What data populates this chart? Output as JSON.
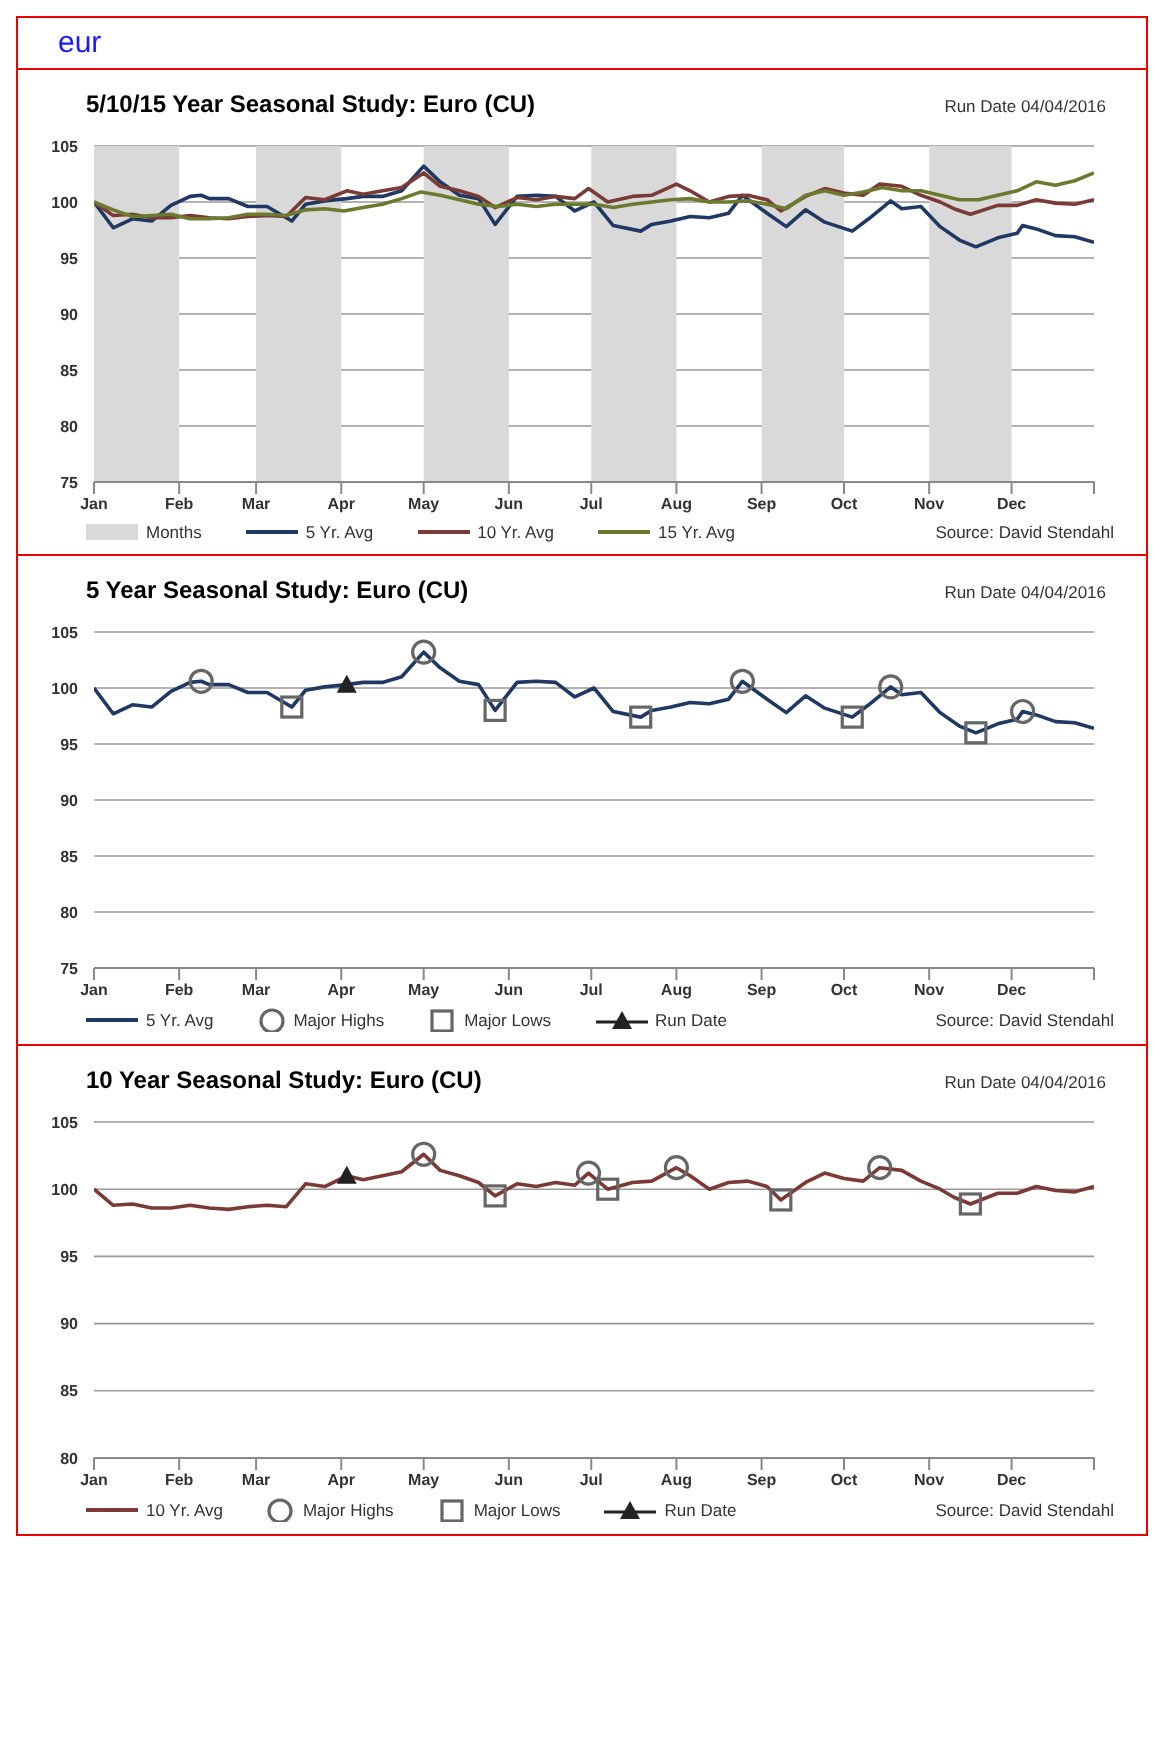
{
  "chart_data": [
    {
      "type": "line",
      "title": "5/10/15 Year Seasonal Study: Euro (CU)",
      "annotations": [
        "eur",
        "Run Date 04/04/2016",
        "Source: David Stendahl"
      ],
      "xlim": [
        "--01-01",
        "--12-31"
      ],
      "xticks": [
        {
          "value": "--01-01",
          "label": "Jan"
        },
        {
          "value": "--02-01",
          "label": "Feb"
        },
        {
          "value": "--03-01",
          "label": "Mar"
        },
        {
          "value": "--04-01",
          "label": "Apr"
        },
        {
          "value": "--05-01",
          "label": "May"
        },
        {
          "value": "--06-01",
          "label": "Jun"
        },
        {
          "value": "--07-01",
          "label": "Jul"
        },
        {
          "value": "--08-01",
          "label": "Aug"
        },
        {
          "value": "--09-01",
          "label": "Sep"
        },
        {
          "value": "--10-01",
          "label": "Oct"
        },
        {
          "value": "--11-01",
          "label": "Nov"
        },
        {
          "value": "--12-01",
          "label": "Dec"
        },
        {
          "value": "--12-31",
          "label": null
        }
      ],
      "ylim": [
        75,
        105
      ],
      "yticks": [
        75,
        80,
        85,
        90,
        95,
        100,
        105
      ],
      "grid": "y",
      "legend": "bottom",
      "bands": [
        {
          "axis": "x",
          "from": "--01-01",
          "to": "--02-01",
          "label": "Months",
          "color": "#d9d9d9"
        },
        {
          "axis": "x",
          "from": "--03-01",
          "to": "--04-01",
          "color": "#d9d9d9"
        },
        {
          "axis": "x",
          "from": "--05-01",
          "to": "--06-01",
          "color": "#d9d9d9"
        },
        {
          "axis": "x",
          "from": "--07-01",
          "to": "--08-01",
          "color": "#d9d9d9"
        },
        {
          "axis": "x",
          "from": "--09-01",
          "to": "--10-01",
          "color": "#d9d9d9"
        },
        {
          "axis": "x",
          "from": "--11-01",
          "to": "--12-01",
          "color": "#d9d9d9"
        }
      ],
      "series": [
        {
          "name": "5 Yr. Avg",
          "color": "#1f3864",
          "x": [
            "--01-01",
            "--01-08",
            "--01-15",
            "--01-22",
            "--01-29",
            "--02-05",
            "--02-09",
            "--02-12",
            "--02-19",
            "--02-26",
            "--03-05",
            "--03-14",
            "--03-19",
            "--03-26",
            "--04-03",
            "--04-09",
            "--04-16",
            "--04-23",
            "--05-01",
            "--05-07",
            "--05-14",
            "--05-21",
            "--05-27",
            "--06-04",
            "--06-11",
            "--06-18",
            "--06-25",
            "--07-02",
            "--07-09",
            "--07-19",
            "--07-23",
            "--07-30",
            "--08-06",
            "--08-13",
            "--08-20",
            "--08-25",
            "--09-03",
            "--09-10",
            "--09-17",
            "--09-24",
            "--10-04",
            "--10-10",
            "--10-18",
            "--10-22",
            "--10-29",
            "--11-05",
            "--11-12",
            "--11-18",
            "--11-26",
            "--12-03",
            "--12-05",
            "--12-10",
            "--12-17",
            "--12-24",
            "--12-31"
          ],
          "values": [
            100,
            97.7,
            98.5,
            98.3,
            99.7,
            100.5,
            100.6,
            100.3,
            100.3,
            99.6,
            99.6,
            98.3,
            99.8,
            100.1,
            100.3,
            100.5,
            100.5,
            101.0,
            103.2,
            101.8,
            100.6,
            100.3,
            98.0,
            100.5,
            100.6,
            100.5,
            99.2,
            100.0,
            97.9,
            97.4,
            98.0,
            98.3,
            98.7,
            98.6,
            99.0,
            100.6,
            99.0,
            97.8,
            99.3,
            98.2,
            97.4,
            98.5,
            100.1,
            99.4,
            99.6,
            97.8,
            96.6,
            96.0,
            96.8,
            97.2,
            97.9,
            97.6,
            97.0,
            96.9,
            96.4
          ]
        },
        {
          "name": "10 Yr. Avg",
          "color": "#7b3a36",
          "x": [
            "--01-01",
            "--01-08",
            "--01-15",
            "--01-22",
            "--01-29",
            "--02-05",
            "--02-12",
            "--02-19",
            "--02-26",
            "--03-05",
            "--03-12",
            "--03-19",
            "--03-26",
            "--04-03",
            "--04-09",
            "--04-16",
            "--04-23",
            "--05-01",
            "--05-07",
            "--05-14",
            "--05-21",
            "--05-27",
            "--06-04",
            "--06-11",
            "--06-18",
            "--06-25",
            "--06-30",
            "--07-07",
            "--07-16",
            "--07-23",
            "--08-01",
            "--08-06",
            "--08-13",
            "--08-20",
            "--08-27",
            "--09-03",
            "--09-08",
            "--09-17",
            "--09-24",
            "--10-01",
            "--10-08",
            "--10-14",
            "--10-22",
            "--10-29",
            "--11-05",
            "--11-10",
            "--11-16",
            "--11-26",
            "--12-03",
            "--12-10",
            "--12-17",
            "--12-24",
            "--12-31"
          ],
          "values": [
            100,
            98.8,
            98.9,
            98.6,
            98.6,
            98.8,
            98.6,
            98.5,
            98.7,
            98.8,
            98.7,
            100.4,
            100.2,
            101.0,
            100.7,
            101.0,
            101.3,
            102.6,
            101.4,
            101.0,
            100.5,
            99.5,
            100.4,
            100.2,
            100.5,
            100.3,
            101.2,
            100.0,
            100.5,
            100.6,
            101.6,
            101.0,
            100.0,
            100.5,
            100.6,
            100.2,
            99.2,
            100.5,
            101.2,
            100.8,
            100.6,
            101.6,
            101.4,
            100.6,
            100.0,
            99.4,
            98.9,
            99.7,
            99.7,
            100.2,
            99.9,
            99.8,
            100.2
          ]
        },
        {
          "name": "15 Yr. Avg",
          "color": "#6b7a2e",
          "x": [
            "--01-01",
            "--01-08",
            "--01-15",
            "--01-22",
            "--01-29",
            "--02-05",
            "--02-12",
            "--02-19",
            "--02-26",
            "--03-05",
            "--03-12",
            "--03-19",
            "--03-26",
            "--04-02",
            "--04-09",
            "--04-16",
            "--04-23",
            "--04-30",
            "--05-07",
            "--05-14",
            "--05-21",
            "--05-28",
            "--06-04",
            "--06-11",
            "--06-18",
            "--06-25",
            "--07-02",
            "--07-09",
            "--07-16",
            "--07-23",
            "--07-30",
            "--08-06",
            "--08-13",
            "--08-20",
            "--08-27",
            "--09-03",
            "--09-10",
            "--09-17",
            "--09-24",
            "--10-01",
            "--10-08",
            "--10-15",
            "--10-22",
            "--10-29",
            "--11-05",
            "--11-12",
            "--11-19",
            "--11-26",
            "--12-03",
            "--12-10",
            "--12-17",
            "--12-24",
            "--12-31"
          ],
          "values": [
            100,
            99.3,
            98.7,
            98.8,
            98.9,
            98.5,
            98.5,
            98.6,
            98.9,
            98.9,
            98.8,
            99.3,
            99.4,
            99.2,
            99.5,
            99.8,
            100.3,
            100.9,
            100.6,
            100.2,
            99.8,
            99.6,
            99.8,
            99.6,
            99.8,
            99.8,
            99.8,
            99.5,
            99.8,
            100.0,
            100.2,
            100.3,
            100.0,
            100.0,
            100.1,
            99.8,
            99.4,
            100.6,
            101.0,
            100.6,
            100.9,
            101.3,
            101.0,
            101.0,
            100.6,
            100.2,
            100.2,
            100.6,
            101.0,
            101.8,
            101.5,
            101.9,
            102.6
          ]
        }
      ]
    },
    {
      "type": "line",
      "title": "5 Year Seasonal Study: Euro (CU)",
      "annotations": [
        "Run Date 04/04/2016",
        "Source: David Stendahl"
      ],
      "xlim": [
        "--01-01",
        "--12-31"
      ],
      "xticks": [
        {
          "value": "--01-01",
          "label": "Jan"
        },
        {
          "value": "--02-01",
          "label": "Feb"
        },
        {
          "value": "--03-01",
          "label": "Mar"
        },
        {
          "value": "--04-01",
          "label": "Apr"
        },
        {
          "value": "--05-01",
          "label": "May"
        },
        {
          "value": "--06-01",
          "label": "Jun"
        },
        {
          "value": "--07-01",
          "label": "Jul"
        },
        {
          "value": "--08-01",
          "label": "Aug"
        },
        {
          "value": "--09-01",
          "label": "Sep"
        },
        {
          "value": "--10-01",
          "label": "Oct"
        },
        {
          "value": "--11-01",
          "label": "Nov"
        },
        {
          "value": "--12-01",
          "label": "Dec"
        },
        {
          "value": "--12-31",
          "label": null
        }
      ],
      "ylim": [
        75,
        105
      ],
      "yticks": [
        75,
        80,
        85,
        90,
        95,
        100,
        105
      ],
      "grid": "y",
      "legend": "bottom",
      "series": [
        {
          "name": "5 Yr. Avg",
          "color": "#1f3864",
          "x": [
            "--01-01",
            "--01-08",
            "--01-15",
            "--01-22",
            "--01-29",
            "--02-05",
            "--02-09",
            "--02-12",
            "--02-19",
            "--02-26",
            "--03-05",
            "--03-14",
            "--03-19",
            "--03-26",
            "--04-03",
            "--04-09",
            "--04-16",
            "--04-23",
            "--05-01",
            "--05-07",
            "--05-14",
            "--05-21",
            "--05-27",
            "--06-04",
            "--06-11",
            "--06-18",
            "--06-25",
            "--07-02",
            "--07-09",
            "--07-19",
            "--07-23",
            "--07-30",
            "--08-06",
            "--08-13",
            "--08-20",
            "--08-25",
            "--09-03",
            "--09-10",
            "--09-17",
            "--09-24",
            "--10-04",
            "--10-10",
            "--10-18",
            "--10-22",
            "--10-29",
            "--11-05",
            "--11-12",
            "--11-18",
            "--11-26",
            "--12-03",
            "--12-05",
            "--12-10",
            "--12-17",
            "--12-24",
            "--12-31"
          ],
          "values": [
            100,
            97.7,
            98.5,
            98.3,
            99.7,
            100.5,
            100.6,
            100.3,
            100.3,
            99.6,
            99.6,
            98.3,
            99.8,
            100.1,
            100.3,
            100.5,
            100.5,
            101.0,
            103.2,
            101.8,
            100.6,
            100.3,
            98.0,
            100.5,
            100.6,
            100.5,
            99.2,
            100.0,
            97.9,
            97.4,
            98.0,
            98.3,
            98.7,
            98.6,
            99.0,
            100.6,
            99.0,
            97.8,
            99.3,
            98.2,
            97.4,
            98.5,
            100.1,
            99.4,
            99.6,
            97.8,
            96.6,
            96.0,
            96.8,
            97.2,
            97.9,
            97.6,
            97.0,
            96.9,
            96.4
          ]
        },
        {
          "name": "Major Highs",
          "type": "scatter",
          "marker": "circle",
          "color": "#666666",
          "x": [
            "--02-09",
            "--05-01",
            "--08-25",
            "--10-18",
            "--12-05"
          ],
          "values": [
            100.6,
            103.2,
            100.6,
            100.1,
            97.9
          ]
        },
        {
          "name": "Major Lows",
          "type": "scatter",
          "marker": "square",
          "color": "#666666",
          "x": [
            "--03-14",
            "--05-27",
            "--07-19",
            "--10-04",
            "--11-18"
          ],
          "values": [
            98.3,
            98.0,
            97.4,
            97.4,
            96.0
          ]
        },
        {
          "name": "Run Date",
          "type": "scatter",
          "marker": "triangle",
          "color": "#222222",
          "x": [
            "--04-03"
          ],
          "values": [
            100.3
          ]
        }
      ]
    },
    {
      "type": "line",
      "title": "10 Year Seasonal Study: Euro (CU)",
      "annotations": [
        "Run Date 04/04/2016",
        "Source: David Stendahl"
      ],
      "xlim": [
        "--01-01",
        "--12-31"
      ],
      "xticks": [
        {
          "value": "--01-01",
          "label": "Jan"
        },
        {
          "value": "--02-01",
          "label": "Feb"
        },
        {
          "value": "--03-01",
          "label": "Mar"
        },
        {
          "value": "--04-01",
          "label": "Apr"
        },
        {
          "value": "--05-01",
          "label": "May"
        },
        {
          "value": "--06-01",
          "label": "Jun"
        },
        {
          "value": "--07-01",
          "label": "Jul"
        },
        {
          "value": "--08-01",
          "label": "Aug"
        },
        {
          "value": "--09-01",
          "label": "Sep"
        },
        {
          "value": "--10-01",
          "label": "Oct"
        },
        {
          "value": "--11-01",
          "label": "Nov"
        },
        {
          "value": "--12-01",
          "label": "Dec"
        },
        {
          "value": "--12-31",
          "label": null
        }
      ],
      "ylim": [
        80,
        105
      ],
      "yticks": [
        80,
        85,
        90,
        95,
        100,
        105
      ],
      "grid": "y",
      "legend": "bottom",
      "series": [
        {
          "name": "10 Yr. Avg",
          "color": "#7b3a36",
          "x": [
            "--01-01",
            "--01-08",
            "--01-15",
            "--01-22",
            "--01-29",
            "--02-05",
            "--02-12",
            "--02-19",
            "--02-26",
            "--03-05",
            "--03-12",
            "--03-19",
            "--03-26",
            "--04-03",
            "--04-09",
            "--04-16",
            "--04-23",
            "--05-01",
            "--05-07",
            "--05-14",
            "--05-21",
            "--05-27",
            "--06-04",
            "--06-11",
            "--06-18",
            "--06-25",
            "--06-30",
            "--07-07",
            "--07-16",
            "--07-23",
            "--08-01",
            "--08-06",
            "--08-13",
            "--08-20",
            "--08-27",
            "--09-03",
            "--09-08",
            "--09-17",
            "--09-24",
            "--10-01",
            "--10-08",
            "--10-14",
            "--10-22",
            "--10-29",
            "--11-05",
            "--11-10",
            "--11-16",
            "--11-26",
            "--12-03",
            "--12-10",
            "--12-17",
            "--12-24",
            "--12-31"
          ],
          "values": [
            100,
            98.8,
            98.9,
            98.6,
            98.6,
            98.8,
            98.6,
            98.5,
            98.7,
            98.8,
            98.7,
            100.4,
            100.2,
            101.0,
            100.7,
            101.0,
            101.3,
            102.6,
            101.4,
            101.0,
            100.5,
            99.5,
            100.4,
            100.2,
            100.5,
            100.3,
            101.2,
            100.0,
            100.5,
            100.6,
            101.6,
            101.0,
            100.0,
            100.5,
            100.6,
            100.2,
            99.2,
            100.5,
            101.2,
            100.8,
            100.6,
            101.6,
            101.4,
            100.6,
            100.0,
            99.4,
            98.9,
            99.7,
            99.7,
            100.2,
            99.9,
            99.8,
            100.2
          ]
        },
        {
          "name": "Major Highs",
          "type": "scatter",
          "marker": "circle",
          "color": "#666666",
          "x": [
            "--05-01",
            "--06-30",
            "--08-01",
            "--10-14"
          ],
          "values": [
            102.6,
            101.2,
            101.6,
            101.6
          ]
        },
        {
          "name": "Major Lows",
          "type": "scatter",
          "marker": "square",
          "color": "#666666",
          "x": [
            "--05-27",
            "--07-07",
            "--09-08",
            "--11-16"
          ],
          "values": [
            99.5,
            100.0,
            99.2,
            98.9
          ]
        },
        {
          "name": "Run Date",
          "type": "scatter",
          "marker": "triangle",
          "color": "#222222",
          "x": [
            "--04-03"
          ],
          "values": [
            101.0
          ]
        }
      ]
    }
  ]
}
